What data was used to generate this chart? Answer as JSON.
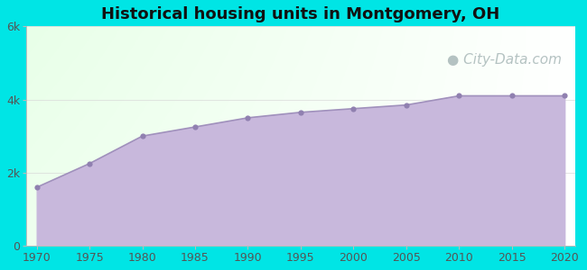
{
  "title": "Historical housing units in Montgomery, OH",
  "title_fontsize": 13,
  "title_fontweight": "bold",
  "background_color": "#00e5e5",
  "fill_color": "#c8b8dc",
  "line_color": "#a090bc",
  "marker_color": "#9080b0",
  "marker_size": 20,
  "years": [
    1970,
    1975,
    1980,
    1985,
    1990,
    1995,
    2000,
    2005,
    2010,
    2015,
    2020
  ],
  "values": [
    1600,
    2250,
    3000,
    3250,
    3500,
    3650,
    3750,
    3850,
    4100,
    4100,
    4100
  ],
  "ylim": [
    0,
    6000
  ],
  "yticks": [
    0,
    2000,
    4000,
    6000
  ],
  "ytick_labels": [
    "0",
    "2k",
    "4k",
    "6k"
  ],
  "xticks": [
    1970,
    1975,
    1980,
    1985,
    1990,
    1995,
    2000,
    2005,
    2010,
    2015,
    2020
  ],
  "watermark": "City-Data.com",
  "watermark_color": "#a8b8b8",
  "watermark_fontsize": 11,
  "tick_fontsize": 9,
  "grid_color": "#d8d8d8",
  "grid_alpha": 0.8,
  "grid_linewidth": 0.6,
  "bg_color_topleft": "#e0f5e0",
  "bg_color_bottomleft": "#c8f0c8",
  "bg_color_topright": "#f8fffa",
  "bg_color_bottomright": "#f0fff0"
}
